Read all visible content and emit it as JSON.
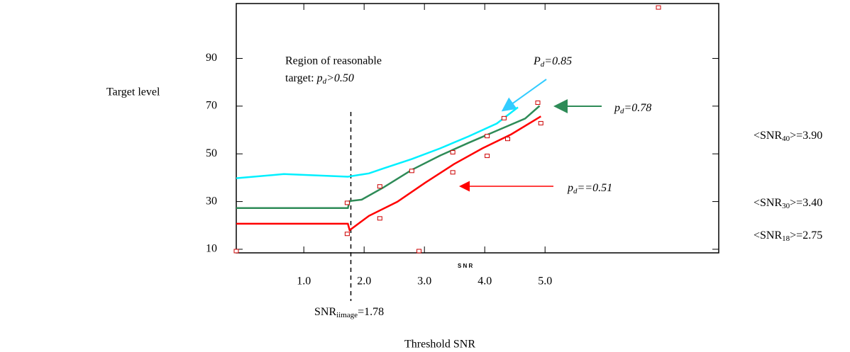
{
  "chart_data": {
    "type": "line",
    "xlabel": "Threshold SNR",
    "ylabel": "Target level",
    "x_axis_note": "S N R",
    "xlim": [
      -0.12,
      7.88
    ],
    "ylim": [
      8.5,
      113
    ],
    "xticks": [
      {
        "value": 1,
        "label": "1.0"
      },
      {
        "value": 2,
        "label": "2.0"
      },
      {
        "value": 3,
        "label": "3.0"
      },
      {
        "value": 4,
        "label": "4.0"
      },
      {
        "value": 5,
        "label": "5.0"
      }
    ],
    "yticks": [
      10,
      30,
      50,
      70,
      90
    ],
    "series": [
      {
        "color": "#00f0ff",
        "x": [
          -0.12,
          0.67,
          1.73,
          2.08,
          2.32,
          2.79,
          3.26,
          3.73,
          4.2,
          4.55
        ],
        "values": [
          39.8,
          41.5,
          40.4,
          41.8,
          43.9,
          47.8,
          52.3,
          57.3,
          62.7,
          69.5
        ]
      },
      {
        "color": "#2e8b57",
        "x": [
          -0.12,
          1.73,
          1.76,
          1.96,
          2.32,
          2.79,
          3.26,
          3.73,
          4.2,
          4.67,
          4.91
        ],
        "values": [
          27.3,
          27.3,
          30.2,
          30.8,
          35.9,
          43.3,
          49.3,
          54.6,
          59.7,
          64.8,
          70.1
        ]
      },
      {
        "color": "#ff0000",
        "x": [
          -0.12,
          1.73,
          1.76,
          2.08,
          2.55,
          3.02,
          3.49,
          3.96,
          4.44,
          4.93
        ],
        "values": [
          20.7,
          20.7,
          18.0,
          24.0,
          29.9,
          38.0,
          45.7,
          52.3,
          58.2,
          65.7
        ]
      }
    ],
    "markers": {
      "color": "#cc0000",
      "x": [
        -0.12,
        1.72,
        1.72,
        2.26,
        2.26,
        2.79,
        2.91,
        3.47,
        3.47,
        4.04,
        4.04,
        4.32,
        4.38,
        4.88,
        4.93,
        6.88
      ],
      "values": [
        9.1,
        29.3,
        16.3,
        36.2,
        22.8,
        42.7,
        9.1,
        42.1,
        50.5,
        49.0,
        57.3,
        64.8,
        56.1,
        71.3,
        62.7,
        111.2
      ]
    },
    "threshold_line": 1.78,
    "annotations": {
      "region": [
        "Region of reasonable",
        "target: ",
        "p",
        "d",
        ">0.50"
      ],
      "pd085": [
        "P",
        "d",
        "=0.85"
      ],
      "pd078": [
        "p",
        "d",
        "=0.78"
      ],
      "pd051": [
        "p",
        "d",
        "==0.51"
      ],
      "snr40": [
        "<SNR",
        "40",
        ">=3.90"
      ],
      "snr30": [
        "<SNR",
        "30",
        ">=3.40"
      ],
      "snr18": [
        "<SNR",
        "18",
        ">=2.75"
      ],
      "snr_image": [
        "SNR",
        "iimage",
        "=1.78"
      ]
    }
  }
}
